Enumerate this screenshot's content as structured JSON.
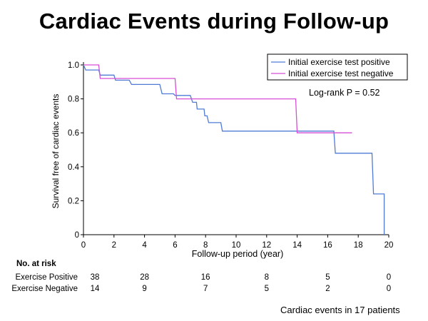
{
  "slide": {
    "title": "Cardiac Events during Follow-up",
    "footnote": "Cardiac events in 17 patients"
  },
  "chart_data": {
    "type": "line",
    "subtype": "kaplan-meier step",
    "ylabel": "Survival free of cardiac events",
    "xlabel": "Follow-up period (year)",
    "xlim": [
      0,
      20
    ],
    "ylim": [
      0,
      1.0
    ],
    "xticks": [
      "0",
      "2",
      "4",
      "6",
      "8",
      "10",
      "12",
      "14",
      "16",
      "18",
      "20"
    ],
    "yticks": [
      "0",
      "0.2",
      "0.4",
      "0.6",
      "0.8",
      "1.0"
    ],
    "grid": false,
    "legend_position": "top-right",
    "annotation": "Log-rank P = 0.52",
    "series": [
      {
        "name": "Initial exercise test positive",
        "color": "#4f7bd6",
        "steps": [
          [
            0,
            1.0
          ],
          [
            0.15,
            0.97
          ],
          [
            1.0,
            0.97
          ],
          [
            1.1,
            0.94
          ],
          [
            2.0,
            0.94
          ],
          [
            2.1,
            0.91
          ],
          [
            3.0,
            0.91
          ],
          [
            3.15,
            0.885
          ],
          [
            5.0,
            0.885
          ],
          [
            5.15,
            0.83
          ],
          [
            5.9,
            0.83
          ],
          [
            6.0,
            0.82
          ],
          [
            7.0,
            0.82
          ],
          [
            7.15,
            0.78
          ],
          [
            7.4,
            0.78
          ],
          [
            7.45,
            0.74
          ],
          [
            7.9,
            0.74
          ],
          [
            7.95,
            0.7
          ],
          [
            8.1,
            0.7
          ],
          [
            8.2,
            0.66
          ],
          [
            9.0,
            0.66
          ],
          [
            9.1,
            0.61
          ],
          [
            16.4,
            0.61
          ],
          [
            16.5,
            0.48
          ],
          [
            18.9,
            0.48
          ],
          [
            19.0,
            0.24
          ],
          [
            19.7,
            0.24
          ],
          [
            19.7,
            0.0
          ]
        ]
      },
      {
        "name": "Initial exercise test negative",
        "color": "#d64fd6",
        "steps": [
          [
            0,
            1.0
          ],
          [
            1.0,
            1.0
          ],
          [
            1.1,
            0.92
          ],
          [
            6.0,
            0.92
          ],
          [
            6.1,
            0.8
          ],
          [
            13.9,
            0.8
          ],
          [
            14.0,
            0.6
          ],
          [
            17.6,
            0.6
          ]
        ]
      }
    ]
  },
  "risk_table": {
    "heading": "No. at risk",
    "times": [
      0,
      4,
      8,
      12,
      16,
      20
    ],
    "rows": [
      {
        "label": "Exercise Positive",
        "values": [
          "38",
          "28",
          "16",
          "8",
          "5",
          "0"
        ]
      },
      {
        "label": "Exercise Negative",
        "values": [
          "14",
          "9",
          "7",
          "5",
          "2",
          "0"
        ]
      }
    ]
  }
}
